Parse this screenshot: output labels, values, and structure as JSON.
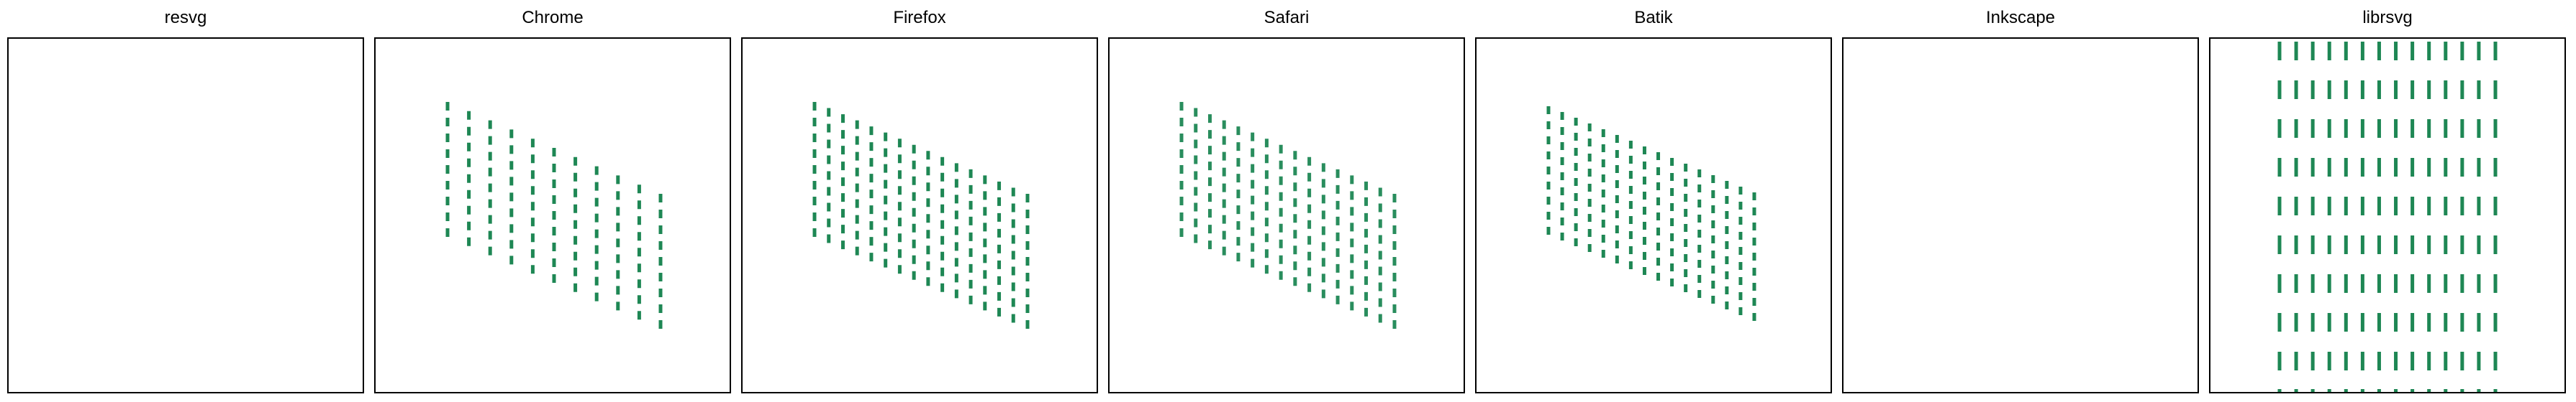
{
  "panels": [
    {
      "id": "resvg",
      "title": "resvg",
      "render": "empty"
    },
    {
      "id": "chrome",
      "title": "Chrome",
      "render": "sparse-skewed"
    },
    {
      "id": "firefox",
      "title": "Firefox",
      "render": "dense-skewed"
    },
    {
      "id": "safari",
      "title": "Safari",
      "render": "dense-skewed-faded"
    },
    {
      "id": "batik",
      "title": "Batik",
      "render": "dense-skewed-small"
    },
    {
      "id": "inkscape",
      "title": "Inkscape",
      "render": "empty"
    },
    {
      "id": "librsvg",
      "title": "librsvg",
      "render": "upright-rows"
    }
  ],
  "colors": {
    "dash": "#1e8754",
    "frame": "#000000",
    "background": "#ffffff"
  }
}
